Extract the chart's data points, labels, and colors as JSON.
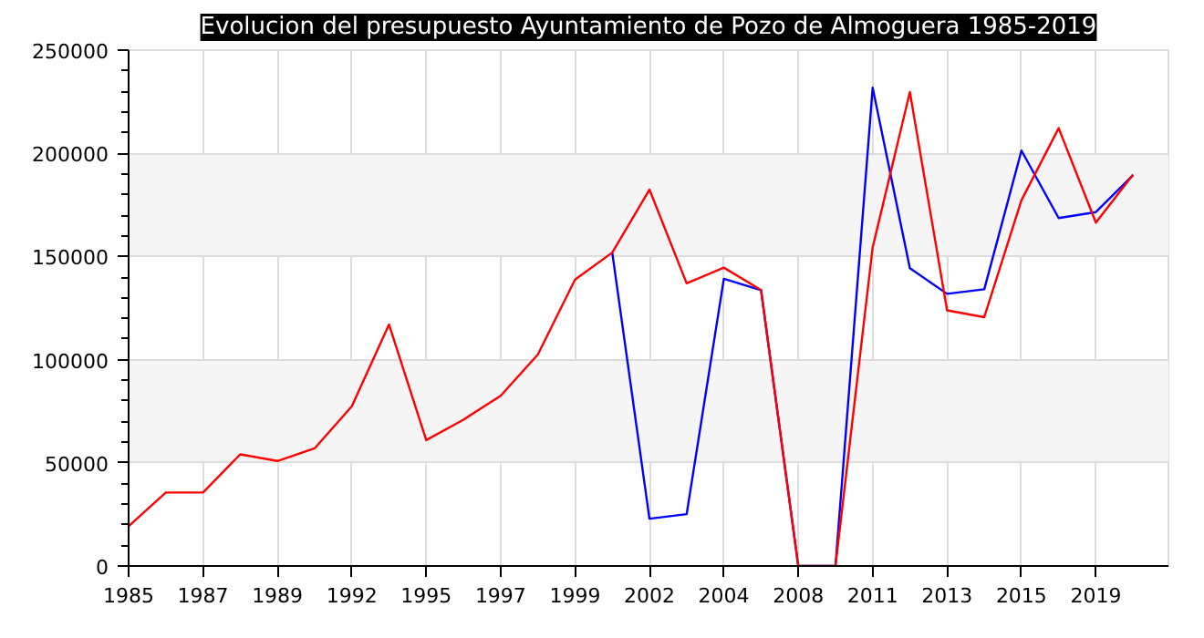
{
  "chart_data": {
    "type": "line",
    "title": "Evolucion del presupuesto Ayuntamiento de Pozo de Almoguera 1985-2019",
    "categories": [
      "1985",
      null,
      "1987",
      null,
      "1989",
      null,
      "1992",
      null,
      "1995",
      null,
      "1997",
      null,
      "1999",
      null,
      "2002",
      null,
      "2004",
      null,
      "2008",
      null,
      "2011",
      null,
      "2013",
      null,
      "2015",
      null,
      "2019",
      null
    ],
    "series": [
      {
        "color": "#0000ff",
        "values": [
          null,
          null,
          null,
          null,
          null,
          null,
          null,
          null,
          null,
          null,
          null,
          null,
          null,
          151900,
          22900,
          25100,
          139200,
          133700,
          0,
          0,
          231800,
          144300,
          131900,
          134100,
          201300,
          168600,
          171500,
          189400
        ]
      },
      {
        "color": "#ff0000",
        "values": [
          19300,
          35600,
          35600,
          54100,
          50900,
          57000,
          77400,
          117000,
          61000,
          70900,
          82500,
          102500,
          138800,
          151900,
          182400,
          137000,
          144600,
          133700,
          0,
          0,
          154400,
          229700,
          123900,
          120600,
          177300,
          212200,
          166400,
          189700
        ]
      }
    ],
    "ylim": [
      0,
      250000
    ],
    "yticks": [
      0,
      50000,
      100000,
      150000,
      200000,
      250000
    ],
    "grid": true
  }
}
